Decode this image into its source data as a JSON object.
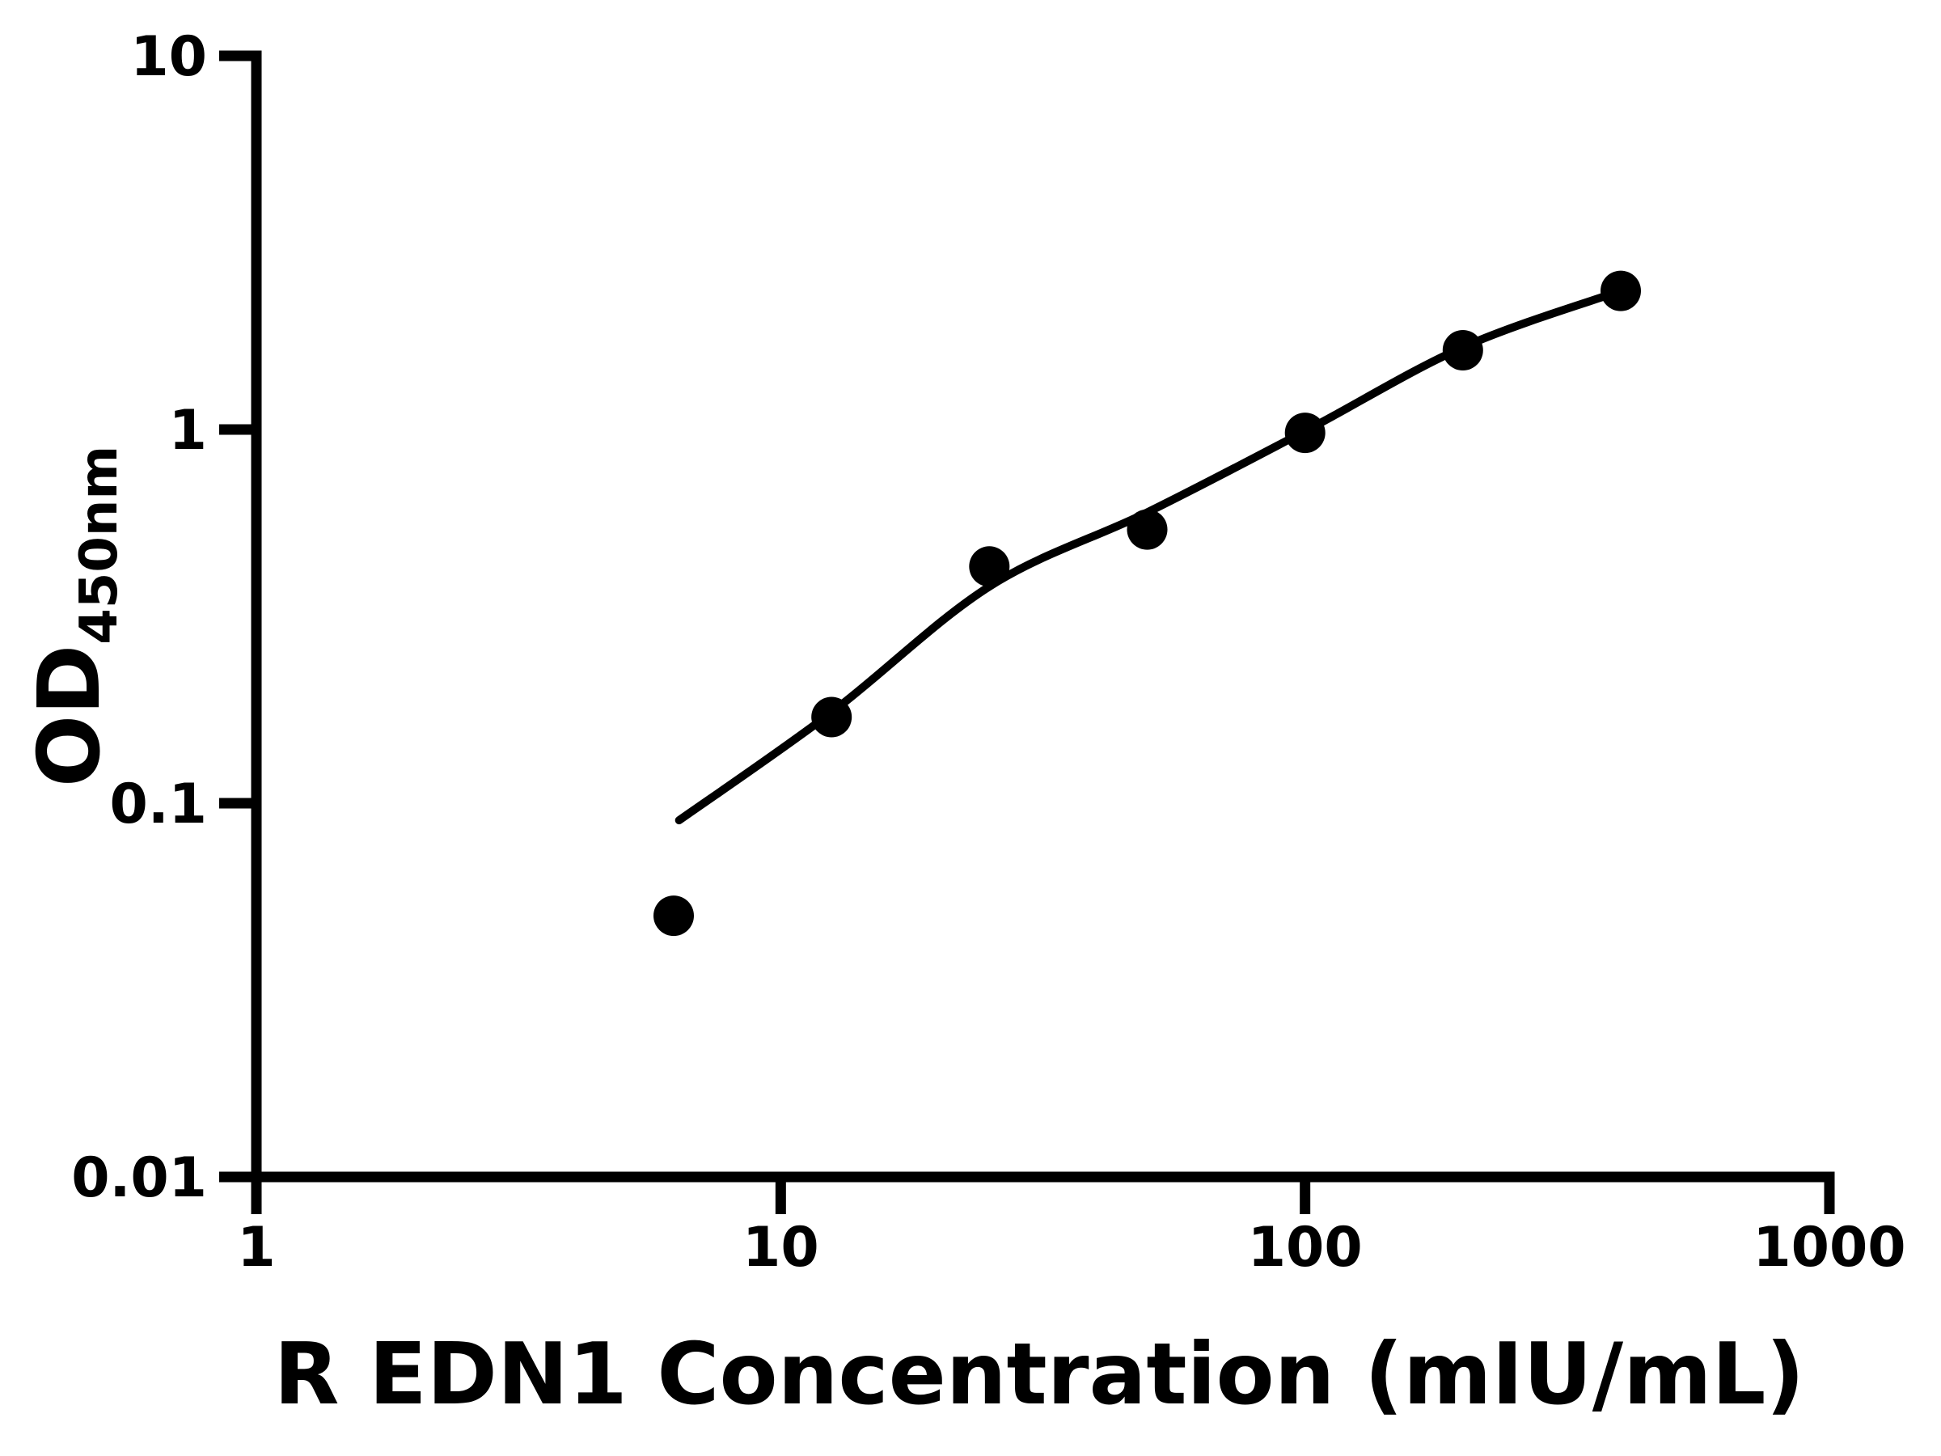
{
  "figure": {
    "background_color": "#ffffff",
    "ink_color": "#000000"
  },
  "chart_data": {
    "type": "scatter",
    "title": "",
    "xlabel": "R EDN1 Concentration (mIU/mL)",
    "ylabel_main": "OD",
    "ylabel_sub": "450nm",
    "x_scale": "log",
    "y_scale": "log",
    "xlim": [
      1,
      1000
    ],
    "ylim": [
      0.01,
      10
    ],
    "x_ticks": [
      1,
      10,
      100,
      1000
    ],
    "x_tick_labels": [
      "1",
      "10",
      "100",
      "1000"
    ],
    "y_ticks": [
      10,
      1,
      0.1,
      0.01
    ],
    "y_tick_labels": [
      "10",
      "1",
      "0.1",
      "0.01"
    ],
    "grid": false,
    "legend": null,
    "series": [
      {
        "name": "standard-points",
        "type": "scatter",
        "marker": "filled-circle",
        "color": "#000000",
        "points": [
          [
            6.25,
            0.05
          ],
          [
            12.5,
            0.17
          ],
          [
            25,
            0.43
          ],
          [
            50,
            0.54
          ],
          [
            100,
            0.98
          ],
          [
            200,
            1.63
          ],
          [
            400,
            2.35
          ]
        ]
      },
      {
        "name": "fitted-curve",
        "type": "line",
        "color": "#000000",
        "points": [
          [
            6.4,
            0.09
          ],
          [
            12.5,
            0.175
          ],
          [
            25,
            0.38
          ],
          [
            50,
            0.6
          ],
          [
            100,
            0.99
          ],
          [
            200,
            1.66
          ],
          [
            400,
            2.35
          ]
        ]
      }
    ]
  }
}
